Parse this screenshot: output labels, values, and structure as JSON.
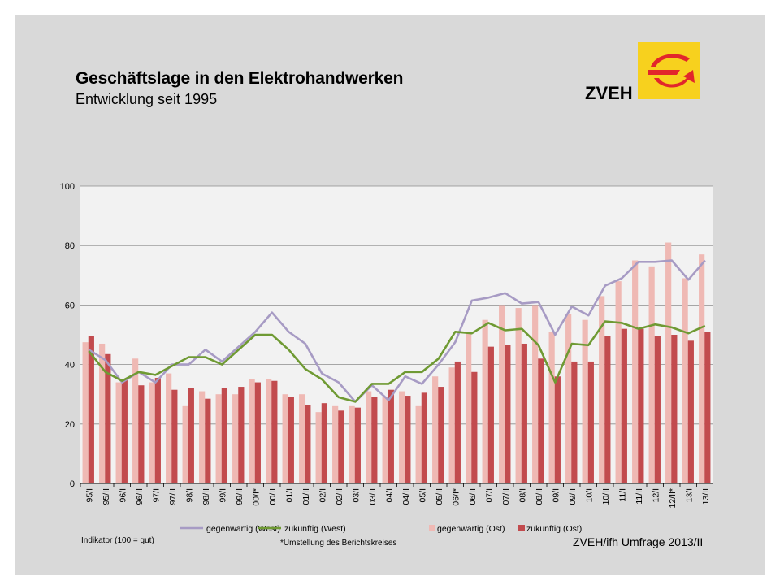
{
  "header": {
    "title": "Geschäftslage in den Elektrohandwerken",
    "subtitle": "Entwicklung seit 1995",
    "brand": "ZVEH"
  },
  "footer": {
    "indicator_note": "Indikator (100 = gut)",
    "asterisk_note": "*Umstellung des Berichtskreises",
    "source": "ZVEH/ifh Umfrage 2013/II"
  },
  "colors": {
    "west_current": "#a79bc4",
    "west_future": "#6f9a33",
    "east_current": "#efb9b4",
    "east_future": "#c24b4e",
    "plot_background": "#f2f2f2",
    "panel": "#d9d9d9",
    "logo_yellow": "#f7d11e",
    "logo_red": "#e2262b"
  },
  "chart_data": {
    "type": "bar",
    "title": "",
    "xlabel": "",
    "ylabel": "",
    "ylim": [
      0,
      100
    ],
    "yticks": [
      0,
      20,
      40,
      60,
      80,
      100
    ],
    "grid": true,
    "legend_position": "bottom",
    "categories": [
      "95/I",
      "95/II",
      "96/I",
      "96/II",
      "97/I",
      "97/II",
      "98/I",
      "98/II",
      "99/I",
      "99/II",
      "00/I*",
      "00/II",
      "01/I",
      "01/II",
      "02/I",
      "02/II",
      "03/I",
      "03/II",
      "04/I",
      "04/II",
      "05/I",
      "05/II",
      "06/I*",
      "06/II",
      "07/I",
      "07/II",
      "08/I",
      "08/II",
      "09/I",
      "09/II",
      "10/I",
      "10/II",
      "11/I",
      "11/II",
      "12/I",
      "12/II*",
      "13/I",
      "13/II"
    ],
    "series": [
      {
        "name": "gegenwärtig (West)",
        "kind": "line",
        "values": [
          45,
          41.5,
          34,
          37.5,
          34,
          40,
          40,
          45,
          41,
          46,
          51,
          57.5,
          51,
          47,
          37,
          34,
          27.5,
          33,
          28,
          36,
          33.5,
          40,
          47.5,
          61.5,
          62.5,
          64,
          60.5,
          61,
          50,
          59.5,
          56.5,
          66.5,
          69,
          74.5,
          74.5,
          75,
          68.5,
          75
        ]
      },
      {
        "name": "zukünftig (West)",
        "kind": "line",
        "values": [
          44.5,
          37.5,
          34.5,
          37.5,
          36.5,
          39.5,
          42.5,
          42.5,
          40,
          45,
          50,
          50,
          45,
          38.5,
          35,
          29,
          27.5,
          33.5,
          33.5,
          37.5,
          37.5,
          42,
          51,
          50.5,
          54,
          51.5,
          52,
          46.5,
          34,
          47,
          46.5,
          54.5,
          54,
          52,
          53.5,
          52.5,
          50.5,
          53
        ]
      },
      {
        "name": "gegenwärtig (Ost)",
        "kind": "bar",
        "values": [
          47.5,
          47,
          34,
          42,
          34,
          37,
          26,
          31,
          30,
          30,
          35,
          35,
          30,
          30,
          24,
          26,
          26,
          31,
          29,
          31,
          26,
          36,
          39,
          51,
          55,
          60,
          59,
          60,
          51,
          57,
          55,
          63,
          68,
          75,
          73,
          81,
          69,
          77
        ]
      },
      {
        "name": "zukünftig (Ost)",
        "kind": "bar",
        "values": [
          49.5,
          43.5,
          35,
          33,
          35.5,
          31.5,
          32,
          28.5,
          32,
          32.5,
          34,
          34.5,
          29,
          26.5,
          27,
          24.5,
          25.5,
          29,
          31.5,
          29.5,
          30.5,
          32.5,
          41,
          37.5,
          46,
          46.5,
          47,
          42,
          36,
          41,
          41,
          49.5,
          52,
          52,
          49.5,
          50,
          48,
          51
        ]
      }
    ]
  }
}
